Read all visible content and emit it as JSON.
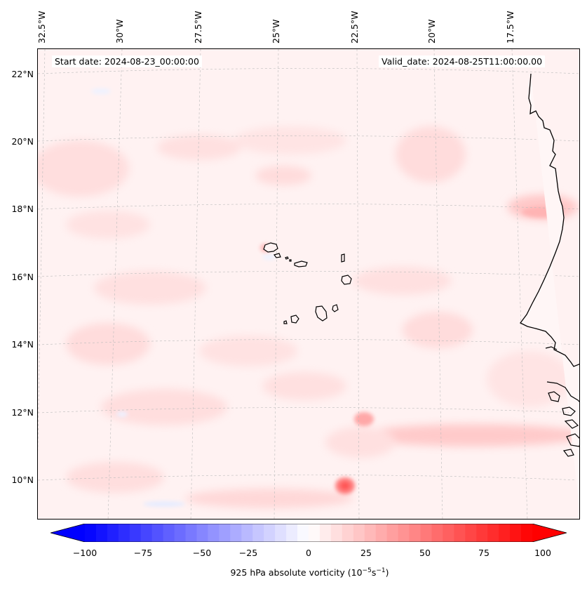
{
  "header": {
    "start_date": "Start date: 2024-08-23_00:00:00",
    "valid_date": "Valid_date: 2024-08-25T11:00:00.00"
  },
  "axes": {
    "lon_labels": [
      "32.5°W",
      "30°W",
      "27.5°W",
      "25°W",
      "22.5°W",
      "20°W",
      "17.5°W"
    ],
    "lat_labels": [
      "22°N",
      "20°N",
      "18°N",
      "16°N",
      "14°N",
      "12°N",
      "10°N"
    ]
  },
  "colorbar": {
    "label_prefix": "925 hPa absolute vorticity (10",
    "label_exp1": "−5",
    "label_mid": "s",
    "label_exp2": "−1",
    "label_suffix": ")",
    "ticks": [
      "−100",
      "−75",
      "−50",
      "−25",
      "0",
      "25",
      "50",
      "75",
      "100"
    ],
    "range": [
      -100,
      100
    ],
    "colormap": "bwr"
  },
  "colors": {
    "background_field": "#fff4f4",
    "coastline": "#000000",
    "gridline": "#bbbbbb"
  }
}
